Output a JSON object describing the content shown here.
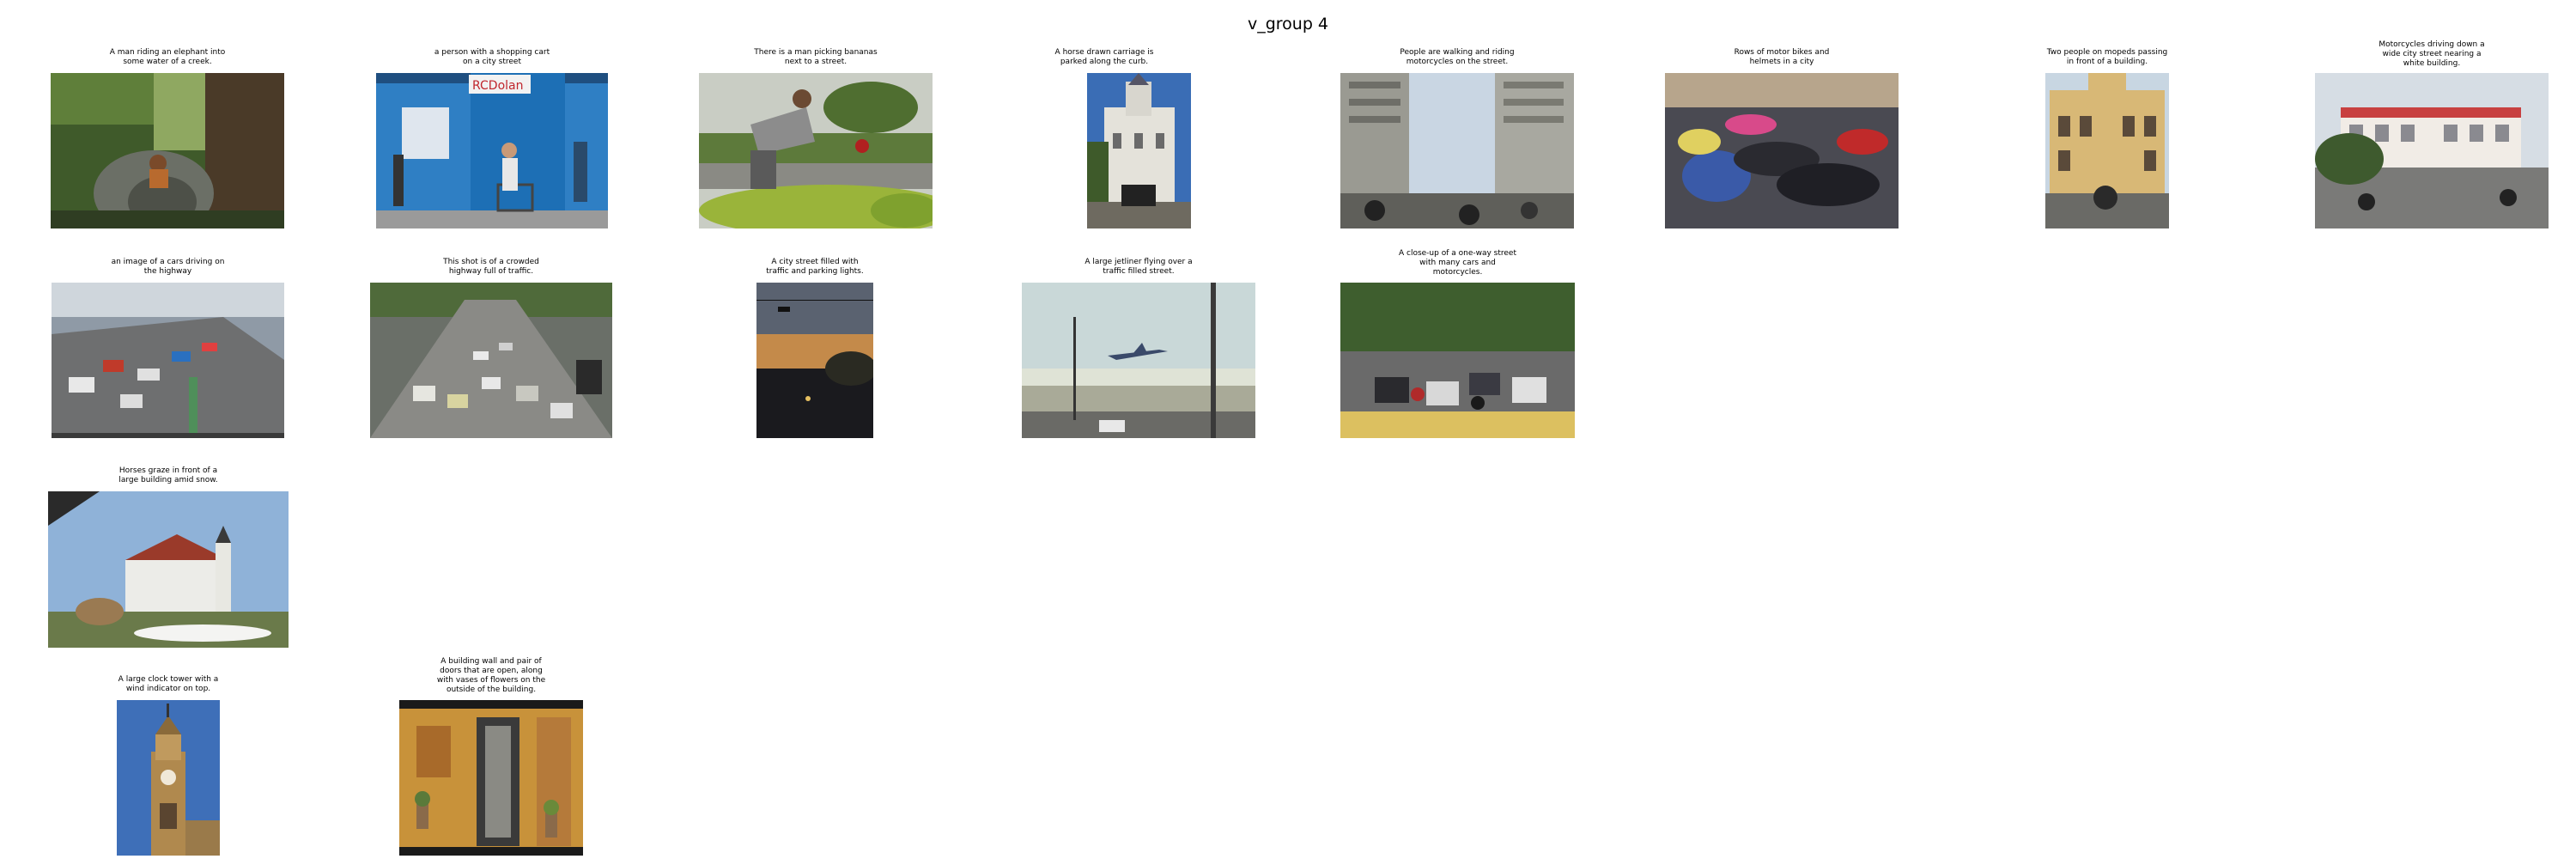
{
  "figure_title": "v_group 4",
  "items": [
    {
      "caption": "A man riding an elephant into\nsome water of a creek."
    },
    {
      "caption": "a person with a shopping cart\non a city street",
      "sign_text": "RCDolan"
    },
    {
      "caption": "There is a man picking bananas\nnext to a street."
    },
    {
      "caption": "A horse drawn carriage is\nparked along the curb."
    },
    {
      "caption": "People are walking and riding\nmotorcycles on the street."
    },
    {
      "caption": "Rows of motor bikes and\nhelmets in a city"
    },
    {
      "caption": "Two people on mopeds passing\nin front of a building."
    },
    {
      "caption": "Motorcycles driving down a\nwide city street nearing a\nwhite building."
    },
    {
      "caption": "an image of a cars driving on\nthe highway"
    },
    {
      "caption": "This shot is of a crowded\nhighway full of traffic."
    },
    {
      "caption": "A city street filled with\ntraffic and parking lights."
    },
    {
      "caption": "A large jetliner flying over a\ntraffic filled street."
    },
    {
      "caption": "A close-up of a one-way street\nwith many cars and\nmotorcycles."
    },
    {
      "caption": "Horses graze in front of a\nlarge building amid snow."
    },
    {
      "caption": "A large clock tower with a\nwind indicator on top."
    },
    {
      "caption": "A building wall and pair of\ndoors that are open, along\nwith vases of flowers on the\noutside of the building."
    }
  ]
}
